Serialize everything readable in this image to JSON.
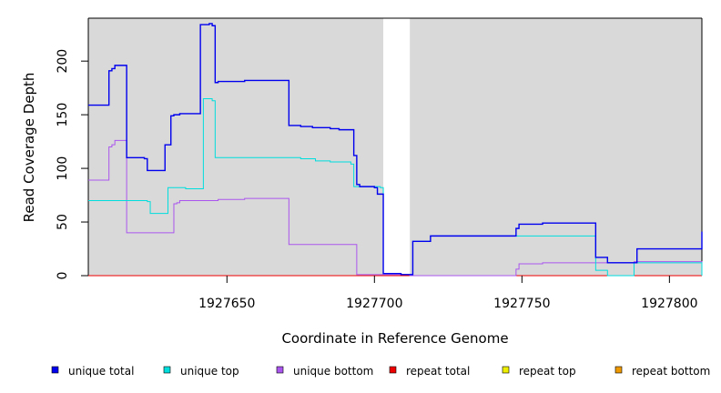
{
  "chart_data": {
    "type": "line",
    "xlabel": "Coordinate in Reference Genome",
    "ylabel": "Read Coverage Depth",
    "xlim": [
      1927603,
      1927811
    ],
    "ylim": [
      0,
      240
    ],
    "x_ticks": [
      1927650,
      1927700,
      1927750,
      1927800
    ],
    "y_ticks": [
      0,
      50,
      100,
      150,
      200
    ],
    "shaded_regions": [
      [
        1927603,
        1927703
      ],
      [
        1927712,
        1927811
      ]
    ],
    "legend_position": "bottom",
    "series": [
      {
        "name": "unique total",
        "color": "#0000ee",
        "points": [
          [
            1927603,
            159
          ],
          [
            1927610,
            191
          ],
          [
            1927611,
            193
          ],
          [
            1927612,
            196
          ],
          [
            1927615,
            196
          ],
          [
            1927616,
            110
          ],
          [
            1927622,
            109
          ],
          [
            1927623,
            98
          ],
          [
            1927628,
            98
          ],
          [
            1927629,
            122
          ],
          [
            1927631,
            149
          ],
          [
            1927632,
            150
          ],
          [
            1927634,
            151
          ],
          [
            1927640,
            151
          ],
          [
            1927641,
            234
          ],
          [
            1927644,
            235
          ],
          [
            1927645,
            233
          ],
          [
            1927646,
            180
          ],
          [
            1927647,
            181
          ],
          [
            1927656,
            182
          ],
          [
            1927670,
            182
          ],
          [
            1927671,
            140
          ],
          [
            1927675,
            139
          ],
          [
            1927679,
            138
          ],
          [
            1927685,
            137
          ],
          [
            1927688,
            136
          ],
          [
            1927693,
            112
          ],
          [
            1927694,
            85
          ],
          [
            1927695,
            83
          ],
          [
            1927700,
            82
          ],
          [
            1927701,
            76
          ],
          [
            1927702,
            76
          ],
          [
            1927703,
            2
          ],
          [
            1927709,
            1
          ],
          [
            1927712,
            1
          ],
          [
            1927713,
            32
          ],
          [
            1927716,
            32
          ],
          [
            1927719,
            37
          ],
          [
            1927734,
            37
          ],
          [
            1927747,
            37
          ],
          [
            1927748,
            44
          ],
          [
            1927749,
            48
          ],
          [
            1927754,
            48
          ],
          [
            1927757,
            49
          ],
          [
            1927774,
            49
          ],
          [
            1927775,
            17
          ],
          [
            1927779,
            12
          ],
          [
            1927788,
            12
          ],
          [
            1927789,
            25
          ],
          [
            1927810,
            25
          ],
          [
            1927811,
            38
          ],
          [
            1927811,
            41
          ]
        ]
      },
      {
        "name": "unique top",
        "color": "#00dddd",
        "points": [
          [
            1927603,
            70
          ],
          [
            1927620,
            70
          ],
          [
            1927623,
            69
          ],
          [
            1927624,
            58
          ],
          [
            1927629,
            58
          ],
          [
            1927630,
            82
          ],
          [
            1927636,
            81
          ],
          [
            1927641,
            81
          ],
          [
            1927642,
            165
          ],
          [
            1927645,
            163
          ],
          [
            1927646,
            110
          ],
          [
            1927670,
            110
          ],
          [
            1927675,
            109
          ],
          [
            1927680,
            107
          ],
          [
            1927685,
            106
          ],
          [
            1927692,
            104
          ],
          [
            1927693,
            83
          ],
          [
            1927702,
            82
          ],
          [
            1927703,
            2
          ],
          [
            1927709,
            1
          ],
          [
            1927712,
            1
          ],
          [
            1927713,
            32
          ],
          [
            1927716,
            32
          ],
          [
            1927719,
            37
          ],
          [
            1927734,
            37
          ],
          [
            1927747,
            37
          ],
          [
            1927774,
            37
          ],
          [
            1927775,
            5
          ],
          [
            1927779,
            0
          ],
          [
            1927787,
            0
          ],
          [
            1927788,
            12
          ],
          [
            1927810,
            12
          ],
          [
            1927811,
            0
          ]
        ]
      },
      {
        "name": "unique bottom",
        "color": "#aa55ee",
        "points": [
          [
            1927603,
            89
          ],
          [
            1927609,
            89
          ],
          [
            1927610,
            120
          ],
          [
            1927611,
            122
          ],
          [
            1927612,
            126
          ],
          [
            1927615,
            126
          ],
          [
            1927616,
            40
          ],
          [
            1927631,
            40
          ],
          [
            1927632,
            67
          ],
          [
            1927633,
            68
          ],
          [
            1927634,
            70
          ],
          [
            1927647,
            71
          ],
          [
            1927656,
            72
          ],
          [
            1927670,
            72
          ],
          [
            1927671,
            29
          ],
          [
            1927693,
            29
          ],
          [
            1927694,
            1
          ],
          [
            1927703,
            1
          ],
          [
            1927712,
            0
          ],
          [
            1927747,
            0
          ],
          [
            1927748,
            6
          ],
          [
            1927749,
            11
          ],
          [
            1927754,
            11
          ],
          [
            1927757,
            12
          ],
          [
            1927774,
            12
          ],
          [
            1927787,
            12
          ],
          [
            1927788,
            13
          ],
          [
            1927810,
            13
          ],
          [
            1927811,
            5
          ]
        ]
      },
      {
        "name": "repeat total",
        "color": "#ee0000",
        "points": [
          [
            1927603,
            0
          ],
          [
            1927811,
            0
          ]
        ]
      },
      {
        "name": "repeat top",
        "color": "#eeee00",
        "points": [
          [
            1927603,
            0
          ],
          [
            1927811,
            0
          ]
        ]
      },
      {
        "name": "repeat bottom",
        "color": "#ee9900",
        "points": [
          [
            1927603,
            0
          ],
          [
            1927811,
            0
          ]
        ]
      }
    ]
  }
}
